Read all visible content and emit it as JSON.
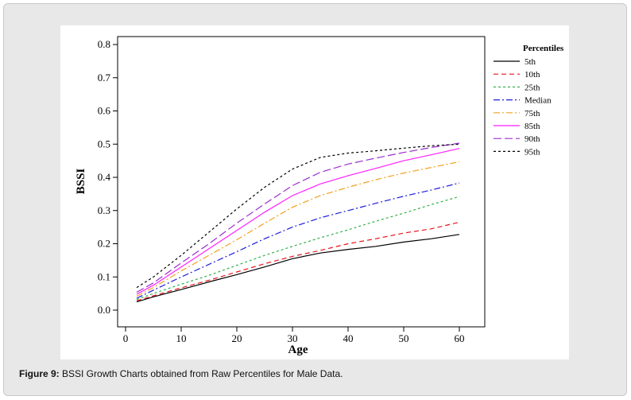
{
  "caption": {
    "label": "Figure 9:",
    "text": " BSSI Growth Charts obtained from Raw Percentiles for Male Data."
  },
  "chart_data": {
    "type": "line",
    "title": "",
    "xlabel": "Age",
    "ylabel": "BSSI",
    "xlim": [
      0,
      60
    ],
    "ylim": [
      0.0,
      0.8
    ],
    "xticks": [
      0,
      10,
      20,
      30,
      40,
      50,
      60
    ],
    "yticks": [
      0.0,
      0.1,
      0.2,
      0.3,
      0.4,
      0.5,
      0.6,
      0.7,
      0.8
    ],
    "ytick_labels": [
      "0.0",
      "0.1",
      "0.2",
      "0.3",
      "0.4",
      "0.5",
      "0.6",
      "0.7",
      "0.8"
    ],
    "grid": false,
    "legend": {
      "title": "Percentiles",
      "placement": "right"
    },
    "x": [
      2,
      5,
      10,
      15,
      20,
      25,
      30,
      35,
      40,
      45,
      50,
      55,
      60
    ],
    "series": [
      {
        "name": "5th",
        "color": "#000000",
        "dash": "solid",
        "values": [
          0.025,
          0.04,
          0.062,
          0.085,
          0.107,
          0.13,
          0.155,
          0.172,
          0.183,
          0.192,
          0.205,
          0.215,
          0.228
        ]
      },
      {
        "name": "10th",
        "color": "#e8141b",
        "dash": "dash",
        "values": [
          0.028,
          0.043,
          0.067,
          0.09,
          0.115,
          0.14,
          0.162,
          0.18,
          0.2,
          0.215,
          0.232,
          0.245,
          0.265
        ]
      },
      {
        "name": "25th",
        "color": "#33b14a",
        "dash": "shortdash",
        "values": [
          0.032,
          0.05,
          0.078,
          0.105,
          0.135,
          0.165,
          0.192,
          0.218,
          0.242,
          0.268,
          0.292,
          0.318,
          0.342
        ]
      },
      {
        "name": "Median",
        "color": "#1d1ddb",
        "dash": "dashdot",
        "values": [
          0.036,
          0.06,
          0.1,
          0.138,
          0.176,
          0.215,
          0.25,
          0.278,
          0.3,
          0.322,
          0.343,
          0.362,
          0.383
        ]
      },
      {
        "name": "75th",
        "color": "#f2a01e",
        "dash": "dashdot",
        "values": [
          0.042,
          0.068,
          0.118,
          0.165,
          0.212,
          0.262,
          0.31,
          0.345,
          0.37,
          0.393,
          0.413,
          0.43,
          0.447
        ]
      },
      {
        "name": "85th",
        "color": "#ff1fff",
        "dash": "solid",
        "values": [
          0.048,
          0.075,
          0.13,
          0.185,
          0.24,
          0.295,
          0.345,
          0.38,
          0.405,
          0.427,
          0.45,
          0.468,
          0.487
        ]
      },
      {
        "name": "90th",
        "color": "#9b2fce",
        "dash": "longdash",
        "values": [
          0.054,
          0.082,
          0.142,
          0.2,
          0.262,
          0.32,
          0.375,
          0.415,
          0.44,
          0.458,
          0.475,
          0.49,
          0.503
        ]
      },
      {
        "name": "95th",
        "color": "#000000",
        "dash": "shortdash",
        "values": [
          0.068,
          0.1,
          0.165,
          0.235,
          0.305,
          0.37,
          0.425,
          0.46,
          0.473,
          0.48,
          0.488,
          0.495,
          0.5
        ]
      }
    ]
  }
}
